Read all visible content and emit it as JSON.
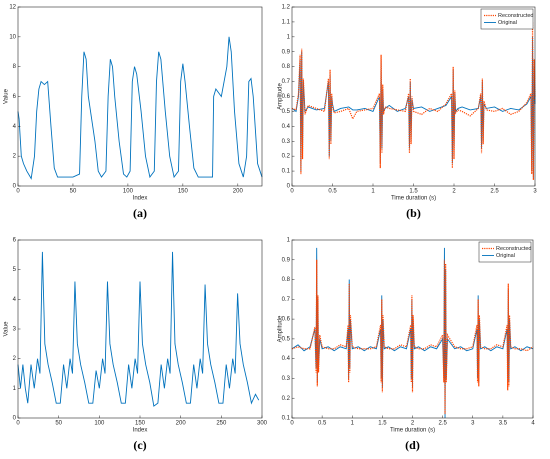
{
  "chart_data": [
    {
      "type": "line",
      "panel_label": "(a)",
      "x_label": "Index",
      "y_label": "Value",
      "xlim": [
        0,
        222
      ],
      "xticks": [
        0,
        50,
        100,
        150,
        200
      ],
      "ylim": [
        0,
        12
      ],
      "yticks": [
        0,
        2,
        4,
        6,
        8,
        10,
        12
      ],
      "series": [
        {
          "name": null,
          "color": "#0072bd",
          "x": [
            0,
            1,
            3,
            5,
            8,
            12,
            15,
            17,
            19,
            21,
            24,
            27,
            30,
            33,
            36,
            40,
            50,
            56,
            58,
            60,
            62,
            64,
            66,
            70,
            73,
            76,
            80,
            82,
            84,
            86,
            88,
            92,
            96,
            99,
            102,
            104,
            106,
            108,
            112,
            116,
            120,
            124,
            126,
            128,
            130,
            134,
            138,
            142,
            146,
            148,
            150,
            152,
            156,
            160,
            164,
            170,
            175,
            177,
            178,
            180,
            185,
            190,
            192,
            194,
            197,
            201,
            205,
            208,
            210,
            212,
            214,
            218,
            222
          ],
          "values": [
            5,
            4.5,
            2,
            1.5,
            1,
            0.5,
            2,
            5,
            6.5,
            7,
            6.8,
            7,
            4,
            1.2,
            0.6,
            0.6,
            0.6,
            0.8,
            6,
            9,
            8.5,
            6,
            5,
            3,
            1,
            0.6,
            1,
            6,
            8.5,
            8,
            6,
            3,
            0.8,
            0.6,
            1,
            7,
            8,
            7.5,
            5,
            2,
            0.6,
            1,
            7,
            9,
            8.5,
            5,
            2,
            0.6,
            1,
            7,
            8.2,
            7,
            4,
            1.2,
            0.6,
            0.6,
            0.6,
            0.6,
            6,
            6.5,
            6,
            8,
            10,
            9,
            5,
            1.5,
            0.6,
            2,
            7,
            7.2,
            6,
            1.5,
            0.6
          ]
        }
      ]
    },
    {
      "type": "line",
      "panel_label": "(b)",
      "x_label": "Time duration (s)",
      "y_label": "Amplitude",
      "xlim": [
        0,
        3
      ],
      "xticks": [
        0,
        0.5,
        1,
        1.5,
        2,
        2.5,
        3
      ],
      "ylim": [
        0,
        1.2
      ],
      "yticks": [
        0,
        0.1,
        0.2,
        0.3,
        0.4,
        0.5,
        0.6,
        0.7,
        0.8,
        0.9,
        1,
        1.1,
        1.2
      ],
      "legend": "upper right",
      "x": [
        0,
        0.05,
        0.08,
        0.1,
        0.11,
        0.12,
        0.13,
        0.14,
        0.16,
        0.2,
        0.3,
        0.4,
        0.45,
        0.46,
        0.47,
        0.48,
        0.49,
        0.5,
        0.52,
        0.6,
        0.7,
        0.75,
        0.8,
        0.9,
        1.0,
        1.08,
        1.09,
        1.1,
        1.11,
        1.12,
        1.13,
        1.15,
        1.2,
        1.3,
        1.4,
        1.44,
        1.45,
        1.46,
        1.47,
        1.48,
        1.5,
        1.6,
        1.7,
        1.8,
        1.9,
        1.97,
        1.98,
        1.99,
        2.0,
        2.01,
        2.02,
        2.05,
        2.1,
        2.2,
        2.3,
        2.33,
        2.34,
        2.35,
        2.36,
        2.37,
        2.4,
        2.5,
        2.6,
        2.7,
        2.8,
        2.9,
        2.95,
        2.96,
        2.97,
        2.98,
        2.99,
        3.0
      ],
      "series": [
        {
          "name": "Reconstructed",
          "color": "#ff4500",
          "dashed": true,
          "values": [
            0.52,
            0.51,
            0.62,
            0.88,
            0.08,
            0.92,
            0.18,
            0.72,
            0.48,
            0.54,
            0.52,
            0.5,
            0.72,
            0.18,
            0.78,
            0.28,
            0.62,
            0.53,
            0.49,
            0.5,
            0.52,
            0.45,
            0.5,
            0.51,
            0.52,
            0.62,
            0.12,
            0.88,
            0.22,
            0.68,
            0.48,
            0.53,
            0.52,
            0.51,
            0.5,
            0.62,
            0.22,
            0.72,
            0.28,
            0.6,
            0.5,
            0.48,
            0.52,
            0.5,
            0.55,
            0.62,
            0.12,
            0.8,
            0.18,
            0.64,
            0.49,
            0.51,
            0.5,
            0.47,
            0.52,
            0.62,
            0.22,
            0.72,
            0.28,
            0.57,
            0.51,
            0.5,
            0.52,
            0.48,
            0.5,
            0.56,
            0.62,
            0.08,
            1.1,
            0.04,
            0.85,
            0.6
          ]
        },
        {
          "name": "Original",
          "color": "#0072bd",
          "values": [
            0.52,
            0.5,
            0.6,
            0.85,
            0.1,
            0.9,
            0.2,
            0.7,
            0.5,
            0.53,
            0.51,
            0.52,
            0.7,
            0.2,
            0.75,
            0.3,
            0.6,
            0.55,
            0.5,
            0.52,
            0.53,
            0.51,
            0.51,
            0.52,
            0.5,
            0.6,
            0.15,
            0.85,
            0.25,
            0.65,
            0.5,
            0.52,
            0.54,
            0.5,
            0.52,
            0.6,
            0.25,
            0.7,
            0.3,
            0.58,
            0.52,
            0.53,
            0.5,
            0.52,
            0.54,
            0.6,
            0.15,
            0.78,
            0.2,
            0.62,
            0.5,
            0.52,
            0.53,
            0.51,
            0.52,
            0.6,
            0.25,
            0.7,
            0.3,
            0.55,
            0.52,
            0.53,
            0.5,
            0.52,
            0.51,
            0.55,
            0.6,
            0.1,
            1.0,
            0.05,
            0.8,
            0.55
          ]
        }
      ]
    },
    {
      "type": "line",
      "panel_label": "(c)",
      "x_label": "Index",
      "y_label": "Value",
      "xlim": [
        0,
        300
      ],
      "xticks": [
        0,
        50,
        100,
        150,
        200,
        250,
        300
      ],
      "ylim": [
        0,
        6
      ],
      "yticks": [
        0,
        1,
        2,
        3,
        4,
        5,
        6
      ],
      "series": [
        {
          "name": null,
          "color": "#0072bd",
          "x": [
            0,
            3,
            6,
            9,
            12,
            16,
            20,
            24,
            27,
            30,
            33,
            37,
            42,
            47,
            52,
            56,
            60,
            64,
            67,
            70,
            73,
            77,
            82,
            87,
            92,
            96,
            100,
            104,
            107,
            110,
            113,
            117,
            122,
            127,
            132,
            136,
            140,
            144,
            147,
            150,
            153,
            157,
            162,
            167,
            172,
            176,
            180,
            184,
            187,
            190,
            193,
            197,
            202,
            207,
            212,
            216,
            220,
            224,
            227,
            230,
            233,
            237,
            242,
            247,
            252,
            256,
            260,
            264,
            267,
            270,
            273,
            277,
            282,
            287,
            292,
            296
          ],
          "values": [
            1.8,
            1.0,
            1.8,
            1.0,
            0.5,
            1.8,
            1.0,
            2.0,
            1.5,
            5.6,
            2.5,
            1.8,
            1.2,
            0.5,
            0.5,
            1.8,
            1.0,
            2.0,
            1.5,
            4.6,
            2.5,
            1.8,
            1.2,
            0.5,
            0.5,
            1.6,
            1.0,
            2.0,
            1.5,
            4.6,
            2.5,
            1.8,
            1.2,
            0.5,
            0.5,
            1.8,
            1.0,
            2.0,
            1.5,
            4.6,
            2.5,
            1.8,
            1.2,
            0.4,
            0.5,
            1.8,
            1.0,
            2.0,
            1.5,
            5.6,
            2.5,
            1.8,
            1.2,
            0.5,
            0.5,
            1.8,
            1.0,
            2.0,
            1.5,
            4.5,
            2.5,
            1.8,
            1.2,
            0.5,
            0.5,
            1.8,
            1.0,
            2.0,
            1.5,
            4.2,
            2.5,
            1.8,
            1.2,
            0.5,
            0.8,
            0.6
          ]
        }
      ]
    },
    {
      "type": "line",
      "panel_label": "(d)",
      "x_label": "Time duration (s)",
      "y_label": "Amplitude",
      "xlim": [
        0,
        4
      ],
      "xticks": [
        0,
        0.5,
        1,
        1.5,
        2,
        2.5,
        3,
        3.5,
        4
      ],
      "ylim": [
        0.1,
        1
      ],
      "yticks": [
        0.1,
        0.2,
        0.3,
        0.4,
        0.5,
        0.6,
        0.7,
        0.8,
        0.9,
        1
      ],
      "legend": "upper right",
      "x": [
        0,
        0.1,
        0.2,
        0.3,
        0.38,
        0.4,
        0.41,
        0.42,
        0.43,
        0.44,
        0.46,
        0.5,
        0.6,
        0.7,
        0.8,
        0.9,
        0.93,
        0.94,
        0.95,
        0.96,
        0.97,
        1.0,
        1.1,
        1.2,
        1.3,
        1.4,
        1.47,
        1.48,
        1.49,
        1.5,
        1.51,
        1.53,
        1.6,
        1.7,
        1.8,
        1.9,
        1.97,
        1.98,
        1.99,
        2.0,
        2.01,
        2.03,
        2.1,
        2.2,
        2.3,
        2.4,
        2.5,
        2.52,
        2.53,
        2.54,
        2.55,
        2.56,
        2.58,
        2.7,
        2.8,
        2.9,
        3.0,
        3.07,
        3.08,
        3.09,
        3.1,
        3.11,
        3.13,
        3.2,
        3.3,
        3.4,
        3.5,
        3.57,
        3.58,
        3.59,
        3.6,
        3.61,
        3.63,
        3.7,
        3.8,
        3.9,
        4.0
      ],
      "series": [
        {
          "name": "Reconstructed",
          "color": "#ff4500",
          "dashed": true,
          "values": [
            0.45,
            0.46,
            0.45,
            0.45,
            0.56,
            0.33,
            0.9,
            0.26,
            0.72,
            0.33,
            0.52,
            0.46,
            0.45,
            0.45,
            0.47,
            0.46,
            0.57,
            0.28,
            0.78,
            0.33,
            0.62,
            0.46,
            0.45,
            0.45,
            0.45,
            0.46,
            0.57,
            0.28,
            0.7,
            0.23,
            0.62,
            0.46,
            0.45,
            0.45,
            0.47,
            0.46,
            0.57,
            0.28,
            0.72,
            0.23,
            0.62,
            0.46,
            0.45,
            0.45,
            0.47,
            0.46,
            0.52,
            0.28,
            0.9,
            0.12,
            0.88,
            0.28,
            0.52,
            0.46,
            0.45,
            0.45,
            0.46,
            0.57,
            0.28,
            0.7,
            0.26,
            0.62,
            0.46,
            0.45,
            0.45,
            0.47,
            0.46,
            0.57,
            0.24,
            0.78,
            0.26,
            0.62,
            0.46,
            0.45,
            0.45,
            0.44,
            0.46
          ]
        },
        {
          "name": "Original",
          "color": "#0072bd",
          "values": [
            0.45,
            0.47,
            0.44,
            0.46,
            0.55,
            0.35,
            0.96,
            0.28,
            0.7,
            0.35,
            0.5,
            0.45,
            0.46,
            0.44,
            0.46,
            0.45,
            0.55,
            0.3,
            0.8,
            0.35,
            0.6,
            0.45,
            0.46,
            0.44,
            0.46,
            0.45,
            0.55,
            0.3,
            0.72,
            0.25,
            0.6,
            0.45,
            0.46,
            0.44,
            0.46,
            0.45,
            0.55,
            0.3,
            0.7,
            0.25,
            0.6,
            0.45,
            0.46,
            0.44,
            0.46,
            0.45,
            0.5,
            0.3,
            0.96,
            0.1,
            0.85,
            0.3,
            0.5,
            0.45,
            0.46,
            0.44,
            0.45,
            0.55,
            0.3,
            0.72,
            0.28,
            0.6,
            0.45,
            0.46,
            0.44,
            0.46,
            0.45,
            0.55,
            0.3,
            0.75,
            0.28,
            0.6,
            0.45,
            0.46,
            0.44,
            0.46,
            0.45
          ]
        }
      ]
    }
  ]
}
